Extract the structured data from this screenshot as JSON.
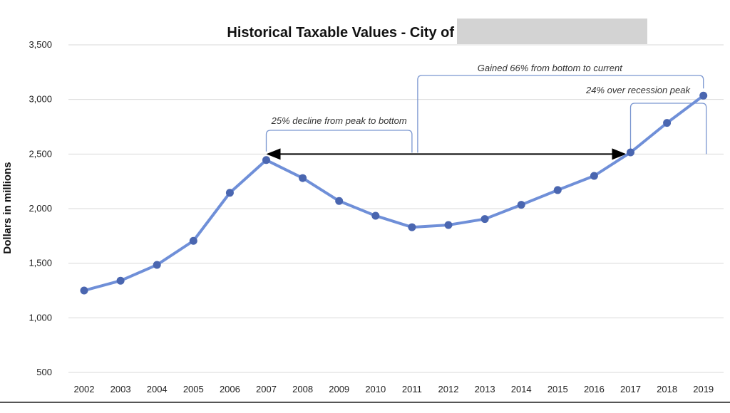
{
  "chart_data": {
    "type": "line",
    "title": "Historical Taxable Values - City of",
    "ylabel": "Dollars in millions",
    "xlabel": "",
    "x": [
      "2002",
      "2003",
      "2004",
      "2005",
      "2006",
      "2007",
      "2008",
      "2009",
      "2010",
      "2011",
      "2012",
      "2013",
      "2014",
      "2015",
      "2016",
      "2017",
      "2018",
      "2019"
    ],
    "series": [
      {
        "values": [
          1250,
          1340,
          1485,
          1705,
          2145,
          2445,
          2280,
          2070,
          1935,
          1830,
          1850,
          1905,
          2035,
          2170,
          2300,
          2515,
          2785,
          3035
        ]
      }
    ],
    "ylim": [
      500,
      3500
    ],
    "yticks": [
      500,
      1000,
      1500,
      2000,
      2500,
      3000,
      3500
    ],
    "ytick_labels": [
      "500",
      "1,000",
      "1,500",
      "2,000",
      "2,500",
      "3,000",
      "3,500"
    ],
    "grid": true,
    "annotations": [
      "25% decline from peak to bottom",
      "Gained 66% from bottom to current",
      "24% over recession peak"
    ],
    "colors": {
      "line": "#6f8fd8",
      "marker": "#4a66b0",
      "grid": "#d9d9d9",
      "bracket": "#7a96d0",
      "arrow": "#000000",
      "redaction": "#d3d3d3"
    }
  }
}
